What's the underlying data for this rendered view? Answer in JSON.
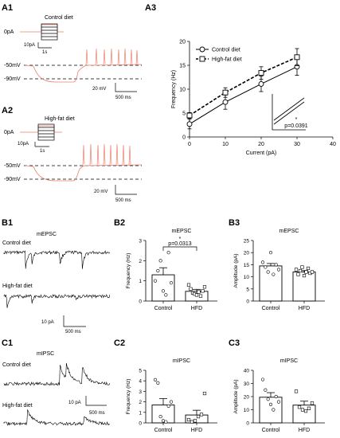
{
  "panels": {
    "a1": "A1",
    "a2": "A2",
    "a3": "A3",
    "b1": "B1",
    "b2": "B2",
    "b3": "B3",
    "c1": "C1",
    "c2": "C2",
    "c3": "C3"
  },
  "a1": {
    "zero": "0pA",
    "diet": "Control diet",
    "pa": "10pA",
    "sec": "1s",
    "m50": "-50mV",
    "m90": "-90mV",
    "mv": "20 mV",
    "ms": "500 ms"
  },
  "a2": {
    "zero": "0pA",
    "diet": "High-fat diet",
    "pa": "10pA",
    "sec": "1s",
    "m50": "-50mV",
    "m90": "-90mV",
    "mv": "20 mV",
    "ms": "500 ms"
  },
  "a3": {
    "legend": [
      "Control diet",
      "High-fat diet"
    ],
    "inset_star": "*",
    "inset_p": "p=0.0391"
  },
  "b1": {
    "title": "mEPSC",
    "ctrl": "Control diet",
    "hfd": "High-fat diet",
    "pa": "10 pA",
    "ms": "500 ms"
  },
  "b2": {
    "star": "*",
    "p": "p=0.0313"
  },
  "c1": {
    "title": "mIPSC",
    "ctrl": "Control diet",
    "hfd": "High-fat diet",
    "pa": "10 pA",
    "ms": "500 ms"
  },
  "colors": {
    "trace": "#e8806c",
    "bar": "#ffffff",
    "axis": "#000000"
  },
  "chart_data": [
    {
      "id": "a3",
      "type": "line",
      "title": "",
      "xlabel": "Current (pA)",
      "ylabel": "Frequency (Hz)",
      "xlim": [
        0,
        40
      ],
      "ylim": [
        0,
        20
      ],
      "xticks": [
        0,
        10,
        20,
        30,
        40
      ],
      "yticks": [
        0,
        5,
        10,
        15,
        20
      ],
      "x": [
        0,
        10,
        20,
        30
      ],
      "series": [
        {
          "name": "Control diet",
          "marker": "circle",
          "style": "solid",
          "values": [
            2.7,
            7.3,
            11.1,
            14.7
          ],
          "err": [
            1.0,
            1.5,
            1.6,
            1.8
          ]
        },
        {
          "name": "High-fat diet",
          "marker": "square",
          "style": "dashed",
          "values": [
            4.5,
            9.3,
            13.4,
            16.7
          ],
          "err": [
            0.6,
            1.0,
            1.3,
            1.8
          ]
        }
      ]
    },
    {
      "id": "b2",
      "type": "bar",
      "title": "mEPSC",
      "ylabel": "Frequency (Hz)",
      "ylim": [
        0,
        3
      ],
      "yticks": [
        0,
        1,
        2,
        3
      ],
      "categories": [
        "Control",
        "HFD"
      ],
      "values": [
        1.3,
        0.48
      ],
      "err": [
        0.35,
        0.1
      ],
      "points": [
        [
          1.0,
          1.5,
          2.0,
          0.5,
          0.3,
          2.4,
          0.9
        ],
        [
          0.8,
          0.6,
          0.4,
          0.35,
          0.3,
          0.45,
          0.25,
          0.5,
          0.7
        ]
      ],
      "markers": [
        "circle",
        "square"
      ]
    },
    {
      "id": "b3",
      "type": "bar",
      "title": "mEPSC",
      "ylabel": "Amplitude (pA)",
      "ylim": [
        0,
        25
      ],
      "yticks": [
        0,
        5,
        10,
        15,
        20,
        25
      ],
      "categories": [
        "Control",
        "HFD"
      ],
      "values": [
        14.5,
        12.0
      ],
      "err": [
        1.0,
        0.6
      ],
      "points": [
        [
          16,
          14,
          12,
          20,
          11,
          15,
          13
        ],
        [
          13,
          11,
          12.5,
          14,
          10.5,
          12,
          13.5,
          11.5,
          12
        ]
      ],
      "markers": [
        "circle",
        "square"
      ]
    },
    {
      "id": "c2",
      "type": "bar",
      "title": "mIPSC",
      "ylabel": "Frequency (Hz)",
      "ylim": [
        0,
        5
      ],
      "yticks": [
        0,
        1,
        2,
        3,
        4,
        5
      ],
      "categories": [
        "Control",
        "HFD"
      ],
      "values": [
        1.7,
        0.75
      ],
      "err": [
        0.6,
        0.45
      ],
      "points": [
        [
          4.1,
          3.8,
          0.6,
          0.2,
          0.1,
          1.6,
          2.0
        ],
        [
          0.3,
          0.1,
          0.2,
          0.6,
          0.8,
          2.8
        ]
      ],
      "markers": [
        "circle",
        "square"
      ]
    },
    {
      "id": "c3",
      "type": "bar",
      "title": "mIPSC",
      "ylabel": "Amplitude (pA)",
      "ylim": [
        0,
        40
      ],
      "yticks": [
        0,
        10,
        20,
        30,
        40
      ],
      "categories": [
        "Control",
        "HFD"
      ],
      "values": [
        19.5,
        13.5
      ],
      "err": [
        3.5,
        3.0
      ],
      "points": [
        [
          33,
          25,
          18,
          14,
          10,
          20,
          16
        ],
        [
          24,
          12,
          10,
          9,
          11,
          15
        ]
      ],
      "markers": [
        "circle",
        "square"
      ]
    }
  ]
}
